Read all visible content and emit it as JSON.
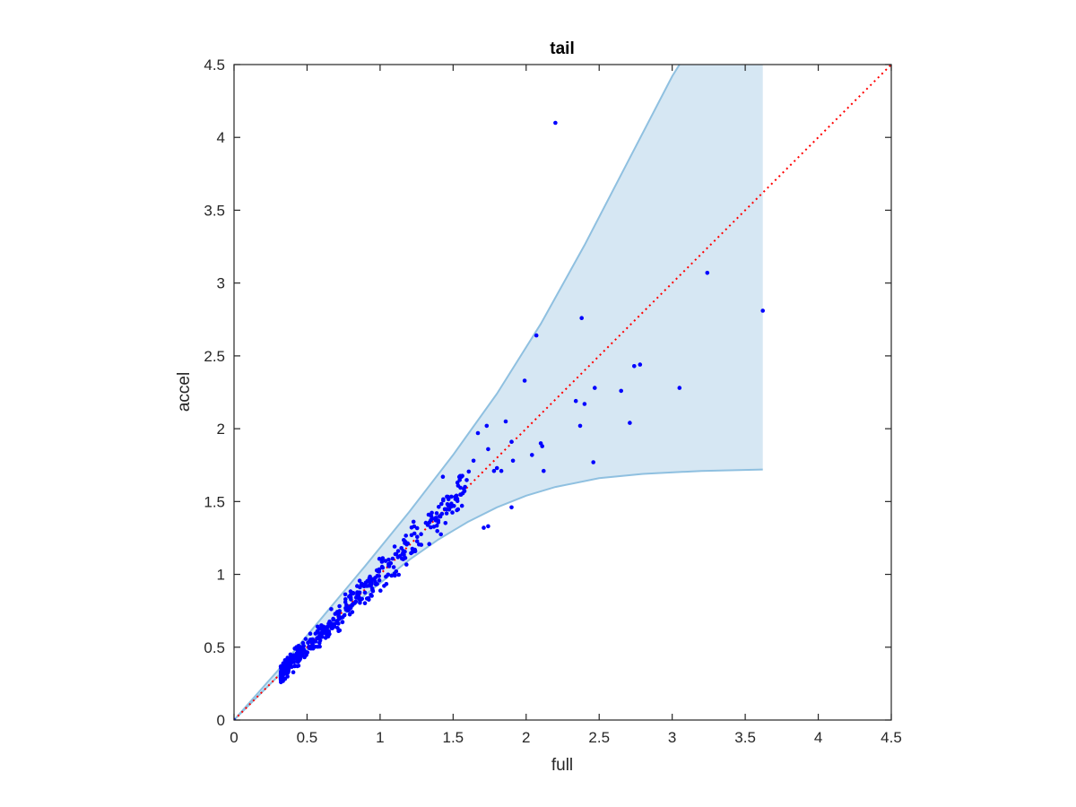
{
  "chart_data": {
    "type": "scatter",
    "title": "tail",
    "xlabel": "full",
    "ylabel": "accel",
    "xlim": [
      0,
      4.5
    ],
    "ylim": [
      0,
      4.5
    ],
    "xticks": [
      "0",
      "0.5",
      "1",
      "1.5",
      "2",
      "2.5",
      "3",
      "3.5",
      "4",
      "4.5"
    ],
    "yticks": [
      "0",
      "0.5",
      "1",
      "1.5",
      "2",
      "2.5",
      "3",
      "3.5",
      "4",
      "4.5"
    ],
    "grid": false,
    "colors": {
      "points": "#0000ff",
      "band_fill": "#d6e7f3",
      "band_edge": "#8fc0e0",
      "reference": "#ff0000",
      "axes": "#262626"
    },
    "reference_line": {
      "style": "dotted",
      "x": [
        0,
        4.5
      ],
      "y": [
        0,
        4.5
      ]
    },
    "band": {
      "upper": [
        [
          0,
          0
        ],
        [
          0.3,
          0.34
        ],
        [
          0.6,
          0.7
        ],
        [
          0.9,
          1.06
        ],
        [
          1.2,
          1.43
        ],
        [
          1.5,
          1.82
        ],
        [
          1.8,
          2.24
        ],
        [
          2.1,
          2.72
        ],
        [
          2.4,
          3.26
        ],
        [
          2.7,
          3.84
        ],
        [
          3.0,
          4.42
        ],
        [
          3.05,
          4.5
        ],
        [
          3.62,
          4.5
        ]
      ],
      "lower": [
        [
          0,
          0
        ],
        [
          0.3,
          0.3
        ],
        [
          0.6,
          0.58
        ],
        [
          0.9,
          0.86
        ],
        [
          1.2,
          1.1
        ],
        [
          1.4,
          1.24
        ],
        [
          1.6,
          1.36
        ],
        [
          1.8,
          1.46
        ],
        [
          2.0,
          1.54
        ],
        [
          2.2,
          1.6
        ],
        [
          2.5,
          1.66
        ],
        [
          2.8,
          1.69
        ],
        [
          3.2,
          1.71
        ],
        [
          3.62,
          1.72
        ]
      ]
    },
    "outliers": [
      {
        "x": 2.2,
        "y": 4.1
      },
      {
        "x": 3.24,
        "y": 3.07
      },
      {
        "x": 3.62,
        "y": 2.81
      },
      {
        "x": 2.38,
        "y": 2.76
      },
      {
        "x": 2.07,
        "y": 2.64
      },
      {
        "x": 1.99,
        "y": 2.33
      },
      {
        "x": 2.47,
        "y": 2.28
      },
      {
        "x": 3.05,
        "y": 2.28
      },
      {
        "x": 2.65,
        "y": 2.26
      },
      {
        "x": 2.74,
        "y": 2.43
      },
      {
        "x": 2.78,
        "y": 2.44
      },
      {
        "x": 2.34,
        "y": 2.19
      },
      {
        "x": 2.4,
        "y": 2.17
      },
      {
        "x": 2.71,
        "y": 2.04
      },
      {
        "x": 2.37,
        "y": 2.02
      },
      {
        "x": 1.86,
        "y": 2.05
      },
      {
        "x": 1.73,
        "y": 2.02
      },
      {
        "x": 1.67,
        "y": 1.97
      },
      {
        "x": 1.9,
        "y": 1.91
      },
      {
        "x": 2.1,
        "y": 1.9
      },
      {
        "x": 2.11,
        "y": 1.88
      },
      {
        "x": 1.74,
        "y": 1.86
      },
      {
        "x": 2.04,
        "y": 1.82
      },
      {
        "x": 1.91,
        "y": 1.78
      },
      {
        "x": 1.8,
        "y": 1.73
      },
      {
        "x": 1.78,
        "y": 1.71
      },
      {
        "x": 1.83,
        "y": 1.71
      },
      {
        "x": 2.12,
        "y": 1.71
      },
      {
        "x": 2.46,
        "y": 1.77
      },
      {
        "x": 1.64,
        "y": 1.78
      },
      {
        "x": 1.9,
        "y": 1.46
      },
      {
        "x": 1.74,
        "y": 1.33
      },
      {
        "x": 1.71,
        "y": 1.32
      },
      {
        "x": 1.43,
        "y": 1.67
      },
      {
        "x": 1.53,
        "y": 1.63
      }
    ],
    "cluster": {
      "count": 470,
      "x_range": [
        0.32,
        1.62
      ],
      "relation": "accel approximately equals full, spread increasing with full"
    }
  }
}
